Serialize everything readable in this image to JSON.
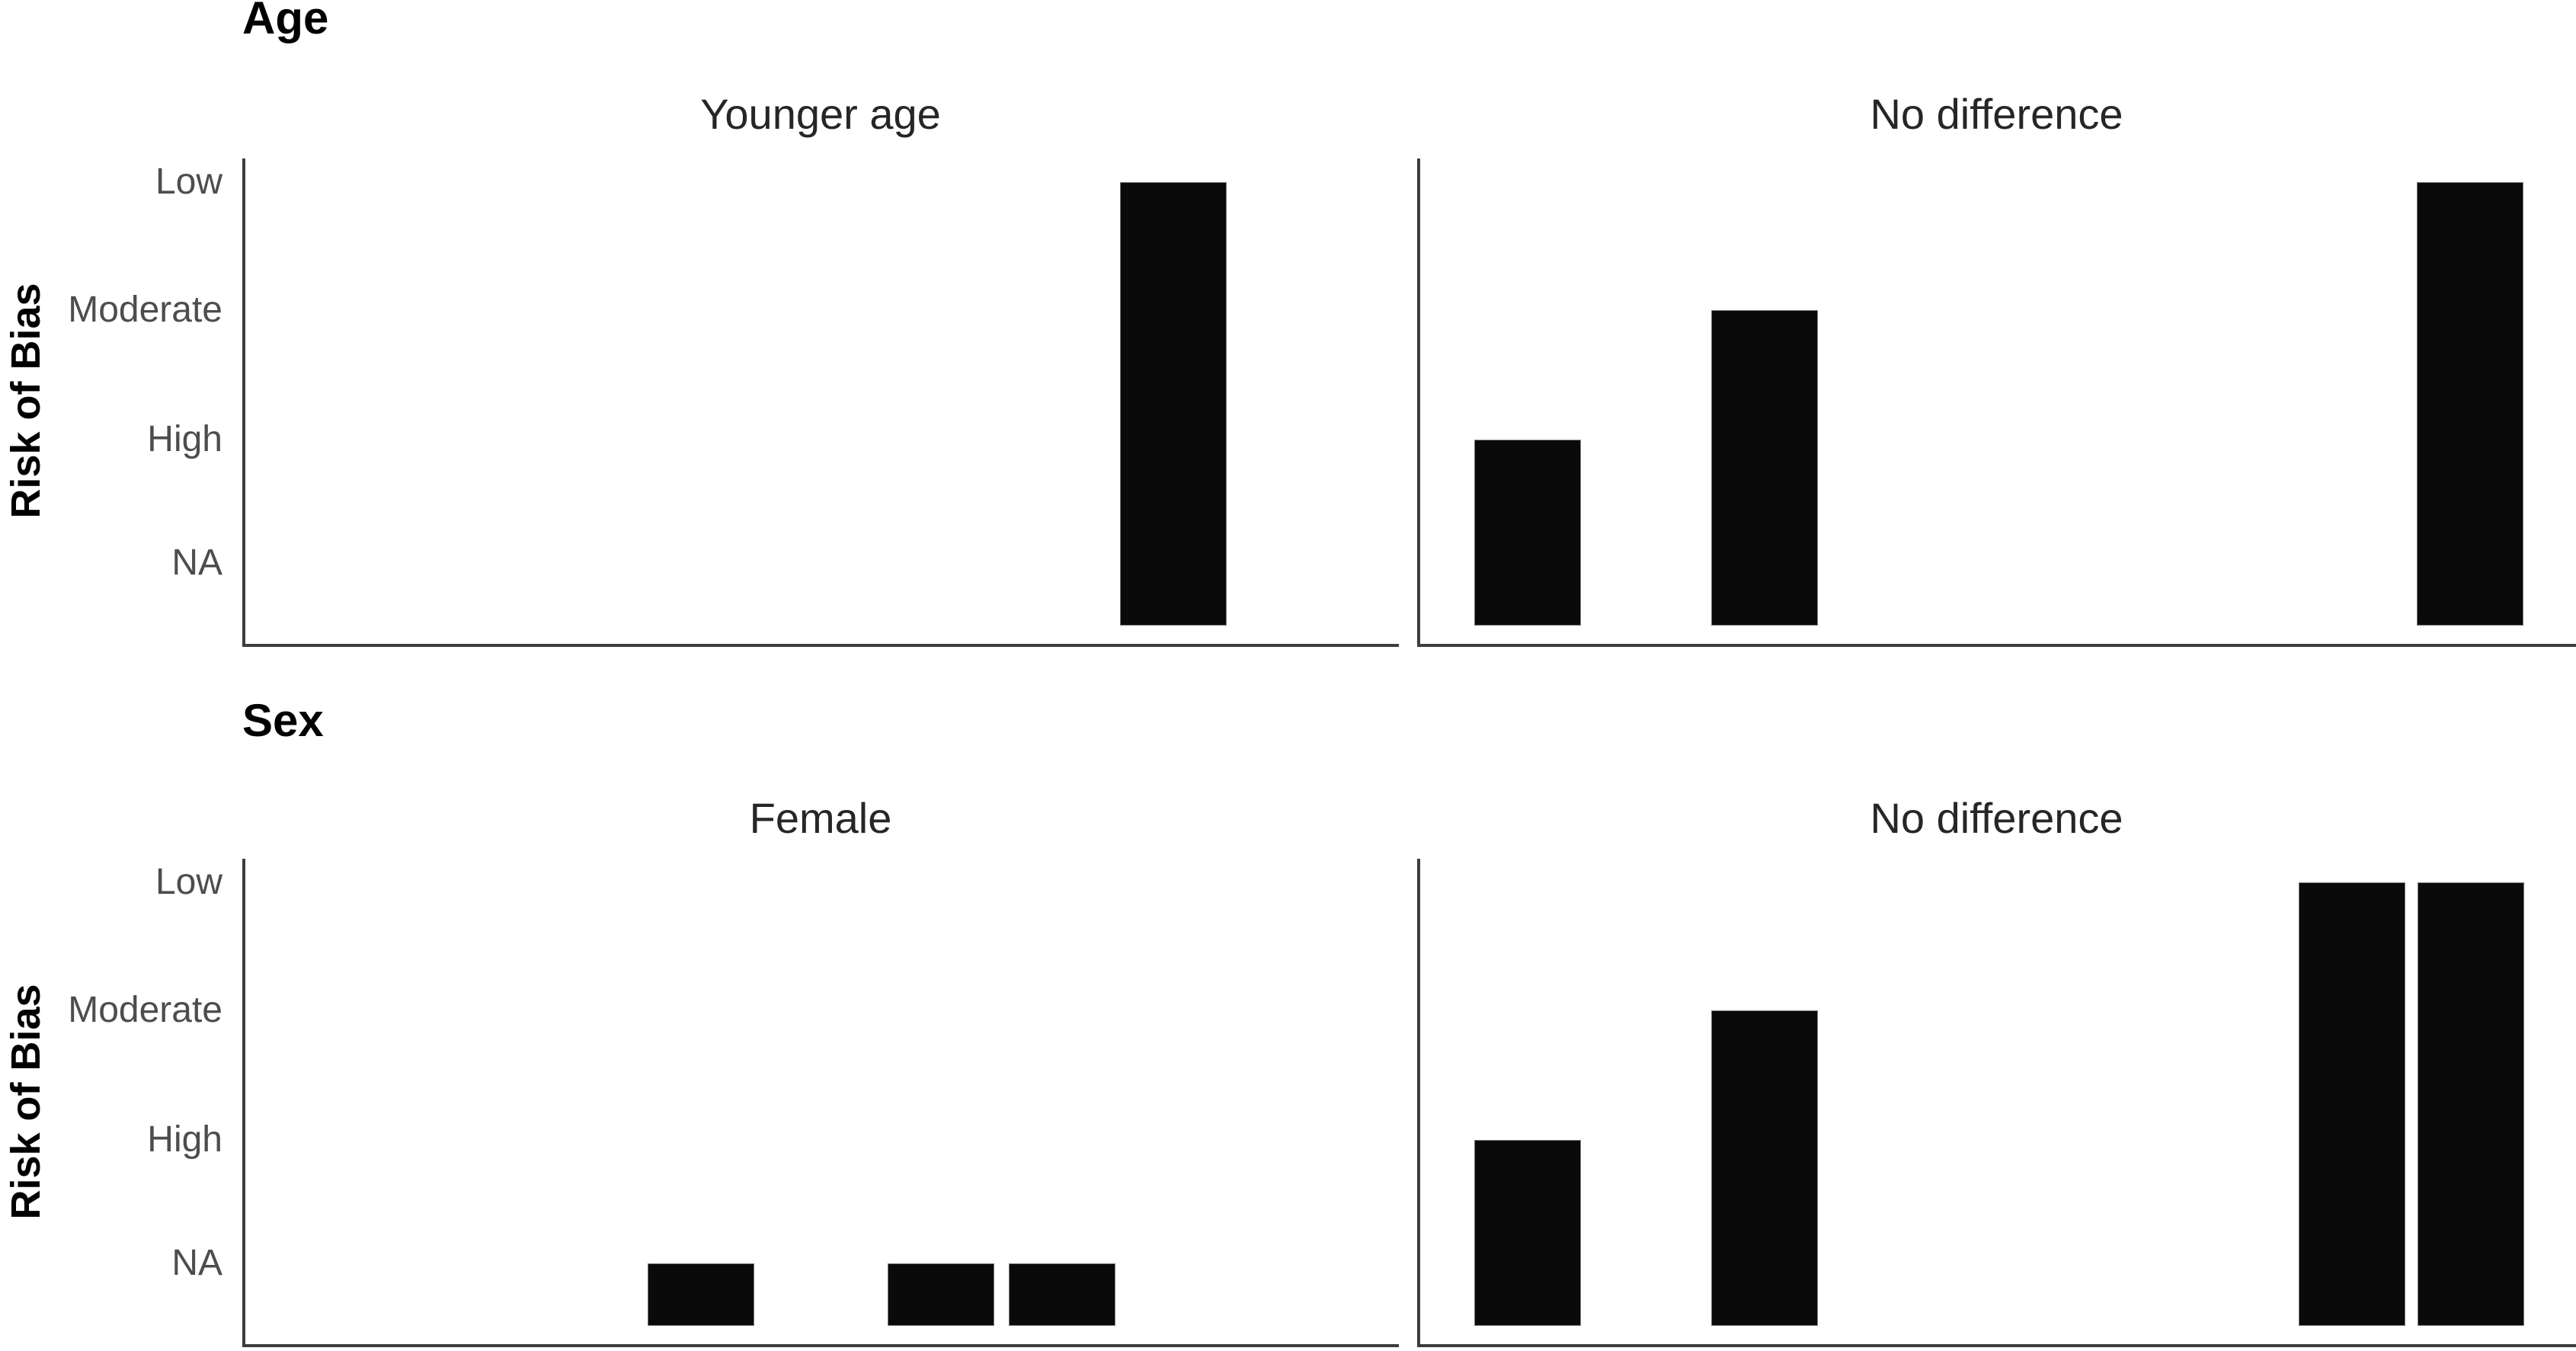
{
  "figure": {
    "ylabel": "Risk of Bias",
    "sections": [
      {
        "title": "Age",
        "facets": [
          {
            "title": "Younger age"
          },
          {
            "title": "No difference"
          }
        ]
      },
      {
        "title": "Sex",
        "facets": [
          {
            "title": "Female"
          },
          {
            "title": "No difference"
          }
        ]
      }
    ]
  },
  "chart_data": {
    "type": "bar",
    "title": "",
    "ylabel": "Risk of Bias",
    "xlabel": "",
    "y_categories": [
      "Low",
      "Moderate",
      "High",
      "NA"
    ],
    "x_tick_labels": [],
    "grid": "off",
    "legend": "none",
    "bar_color": "#0a0a0a",
    "axis_color": "#3d3d3d",
    "tick_label_color": "#4d4d4d",
    "facet_title_color": "#262626",
    "bar_width_frac": 0.0924,
    "panels": [
      {
        "section": "Age",
        "facet": "Younger age",
        "bars": [
          {
            "x_frac": 0.758,
            "risk": "Low"
          }
        ]
      },
      {
        "section": "Age",
        "facet": "No difference",
        "bars": [
          {
            "x_frac": 0.047,
            "risk": "High"
          },
          {
            "x_frac": 0.252,
            "risk": "Moderate"
          },
          {
            "x_frac": 0.862,
            "risk": "Low"
          }
        ]
      },
      {
        "section": "Sex",
        "facet": "Female",
        "bars": [
          {
            "x_frac": 0.349,
            "risk": "NA"
          },
          {
            "x_frac": 0.557,
            "risk": "NA"
          },
          {
            "x_frac": 0.662,
            "risk": "NA"
          }
        ]
      },
      {
        "section": "Sex",
        "facet": "No difference",
        "bars": [
          {
            "x_frac": 0.047,
            "risk": "High"
          },
          {
            "x_frac": 0.252,
            "risk": "Moderate"
          },
          {
            "x_frac": 0.76,
            "risk": "Low"
          },
          {
            "x_frac": 0.863,
            "risk": "Low"
          }
        ]
      }
    ]
  }
}
